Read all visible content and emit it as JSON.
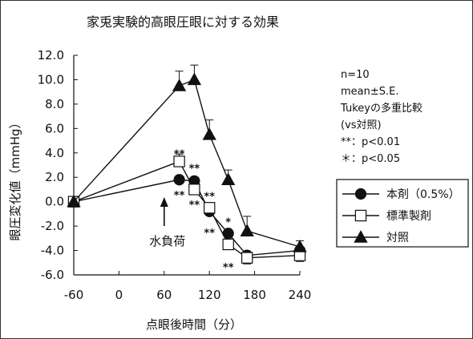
{
  "chart_data": {
    "type": "line",
    "title": "家兎実験的高眼圧眼に対する効果",
    "xlabel": "点眼後時間（分）",
    "ylabel": "眼圧変化値（mmHg）",
    "ylim": [
      -6,
      12
    ],
    "yticks": [
      "12.0",
      "10.0",
      "8.0",
      "6.0",
      "4.0",
      "2.0",
      "0.0",
      "-2.0",
      "-4.0",
      "-6.0"
    ],
    "xticks": [
      "-60",
      "0",
      "60",
      "120",
      "180",
      "240"
    ],
    "grid": false,
    "legend_position": "right",
    "series": [
      {
        "name": "本剤（0.5%）",
        "marker": "circle-filled",
        "color": "#111111",
        "x": [
          -60,
          80,
          100,
          120,
          145,
          170,
          240
        ],
        "y": [
          0.0,
          1.8,
          1.7,
          -0.8,
          -2.6,
          -4.4,
          -4.0
        ],
        "err": [
          0,
          0,
          0,
          0,
          0,
          0.3,
          0.7
        ]
      },
      {
        "name": "標準製剤",
        "marker": "square-open",
        "color": "#111111",
        "x": [
          -60,
          80,
          100,
          120,
          145,
          170,
          240
        ],
        "y": [
          0.0,
          3.3,
          1.0,
          -0.5,
          -3.5,
          -4.6,
          -4.4
        ],
        "err": [
          0,
          0.6,
          0.6,
          0.6,
          0.4,
          0.5,
          0.5
        ]
      },
      {
        "name": "対照",
        "marker": "triangle-filled",
        "color": "#111111",
        "x": [
          -60,
          80,
          100,
          120,
          145,
          170,
          240
        ],
        "y": [
          0.0,
          9.5,
          10.0,
          5.5,
          1.8,
          -2.4,
          -3.7
        ],
        "err": [
          0,
          1.2,
          1.2,
          1.2,
          0.8,
          1.2,
          0.5
        ]
      }
    ],
    "significance_labels": [
      {
        "text": "**",
        "x": 80,
        "y": 3.9
      },
      {
        "text": "**",
        "x": 100,
        "y": 2.7
      },
      {
        "text": "**",
        "x": 120,
        "y": 0.4
      },
      {
        "text": "*",
        "x": 145,
        "y": -1.7
      },
      {
        "text": "**",
        "x": 80,
        "y": 0.5
      },
      {
        "text": "**",
        "x": 100,
        "y": -0.3
      },
      {
        "text": "**",
        "x": 120,
        "y": -2.6
      },
      {
        "text": "**",
        "x": 145,
        "y": -5.4
      }
    ],
    "annotation_arrow": {
      "label": "水負荷",
      "x": 60
    }
  },
  "notes": [
    "n=10",
    "mean±S.E.",
    "Tukeyの多重比較",
    "(vs対照)",
    "**：p<0.01",
    "＊：p<0.05"
  ]
}
